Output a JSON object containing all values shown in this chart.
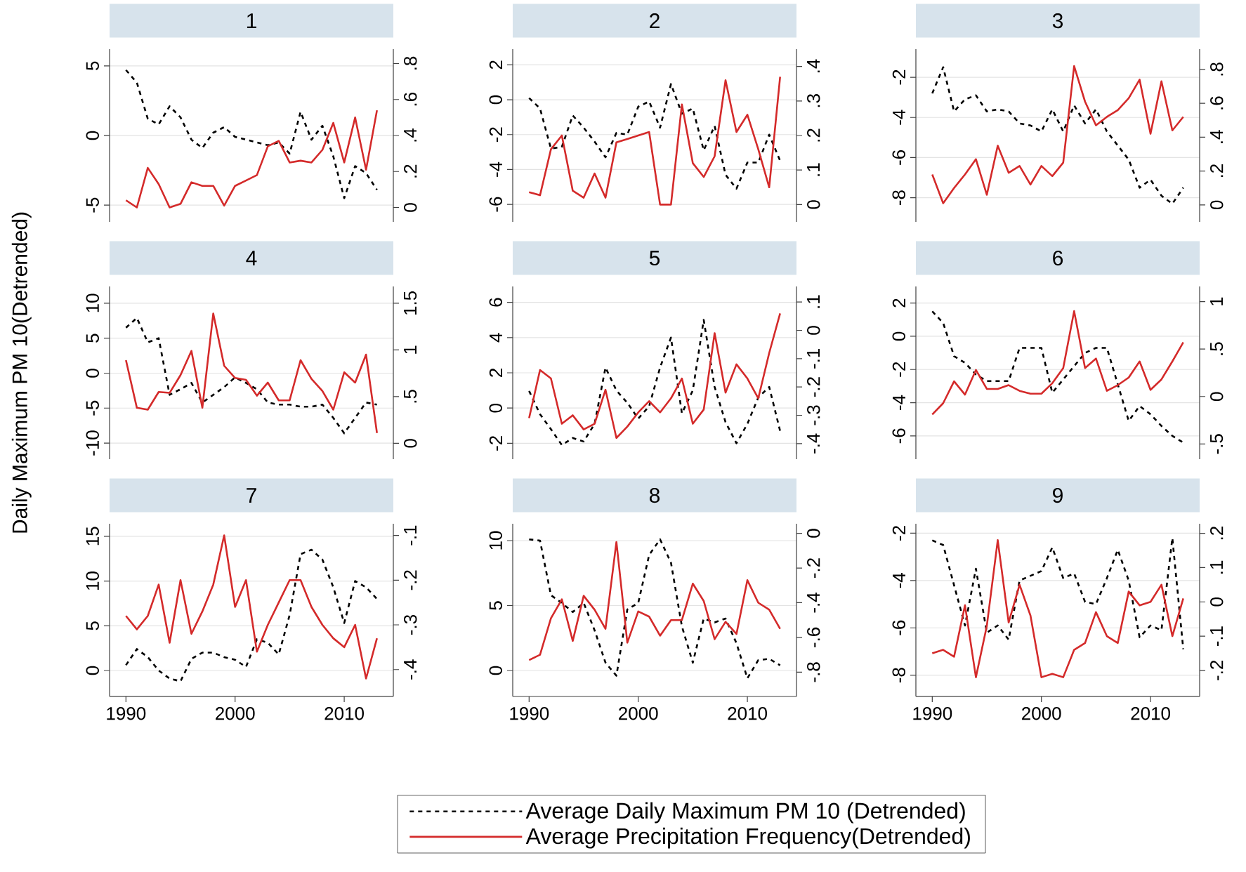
{
  "chart_data": [
    {
      "type": "line",
      "title": "1",
      "x": [
        1990,
        1991,
        1992,
        1993,
        1994,
        1995,
        1996,
        1997,
        1998,
        1999,
        2000,
        2001,
        2002,
        2003,
        2004,
        2005,
        2006,
        2007,
        2008,
        2009,
        2010,
        2011,
        2012,
        2013
      ],
      "xlim": [
        1988.5,
        2014.5
      ],
      "xticks": [
        1990,
        2000,
        2010
      ],
      "ylim": [
        -6.2,
        6.2
      ],
      "yticks": [
        -5,
        0,
        5
      ],
      "y2lim": [
        -0.08,
        0.88
      ],
      "y2ticks": [
        0,
        {
          "value": 0.2,
          "label": ".2"
        },
        {
          "value": 0.4,
          "label": ".4"
        },
        {
          "value": 0.6,
          "label": ".6"
        },
        {
          "value": 0.8,
          "label": ".8"
        }
      ],
      "grid": "y",
      "tick_labels": "y",
      "series": [
        {
          "color": "#000000",
          "line_style": "dashed",
          "values": [
            4.7,
            3.8,
            1.2,
            0.8,
            2.1,
            1.3,
            -0.3,
            -0.9,
            0.2,
            0.6,
            -0.1,
            -0.3,
            -0.5,
            -0.7,
            -0.5,
            -1.3,
            1.7,
            -0.3,
            0.7,
            -1.5,
            -4.5,
            -2.2,
            -2.7,
            -3.9
          ]
        },
        {
          "color": "#d42a2a",
          "line_style": "solid",
          "axis": "y2",
          "values": [
            0.04,
            0,
            0.22,
            0.13,
            0,
            0.02,
            0.14,
            0.12,
            0.12,
            0.01,
            0.12,
            0.15,
            0.18,
            0.34,
            0.37,
            0.25,
            0.26,
            0.25,
            0.32,
            0.47,
            0.25,
            0.5,
            0.21,
            0.54
          ]
        }
      ]
    },
    {
      "type": "line",
      "title": "2",
      "x": [
        1990,
        1991,
        1992,
        1993,
        1994,
        1995,
        1996,
        1997,
        1998,
        1999,
        2000,
        2001,
        2002,
        2003,
        2004,
        2005,
        2006,
        2007,
        2008,
        2009,
        2010,
        2011,
        2012,
        2013
      ],
      "xlim": [
        1988.5,
        2014.5
      ],
      "xticks": [
        1990,
        2000,
        2010
      ],
      "ylim": [
        -7,
        2.9
      ],
      "yticks": [
        -6,
        -4,
        -2,
        0,
        2
      ],
      "y2lim": [
        -0.05,
        0.45
      ],
      "y2ticks": [
        0,
        {
          "value": 0.1,
          "label": ".1"
        },
        {
          "value": 0.2,
          "label": ".2"
        },
        {
          "value": 0.3,
          "label": ".3"
        },
        {
          "value": 0.4,
          "label": ".4"
        }
      ],
      "grid": "y",
      "tick_labels": "y",
      "series": [
        {
          "color": "#000000",
          "line_style": "dashed",
          "values": [
            0.1,
            -0.5,
            -2.8,
            -2.7,
            -0.9,
            -1.6,
            -2.4,
            -3.3,
            -1.9,
            -2.0,
            -0.4,
            -0.1,
            -1.6,
            0.9,
            -0.8,
            -0.5,
            -2.9,
            -1.5,
            -4.3,
            -5.1,
            -3.6,
            -3.6,
            -2.0,
            -3.5
          ]
        },
        {
          "color": "#d42a2a",
          "line_style": "solid",
          "axis": "y2",
          "values": [
            0.036,
            0.027,
            0.16,
            0.2,
            0.04,
            0.02,
            0.09,
            0.02,
            0.18,
            0.19,
            0.2,
            0.21,
            0,
            0,
            0.29,
            0.12,
            0.08,
            0.14,
            0.36,
            0.21,
            0.26,
            0.16,
            0.05,
            0.37
          ]
        }
      ]
    },
    {
      "type": "line",
      "title": "3",
      "x": [
        1990,
        1991,
        1992,
        1993,
        1994,
        1995,
        1996,
        1997,
        1998,
        1999,
        2000,
        2001,
        2002,
        2003,
        2004,
        2005,
        2006,
        2007,
        2008,
        2009,
        2010,
        2011,
        2012,
        2013
      ],
      "xlim": [
        1988.5,
        2014.5
      ],
      "xticks": [
        1990,
        2000,
        2010
      ],
      "ylim": [
        -9.2,
        -0.6
      ],
      "yticks": [
        -8,
        -6,
        -4,
        -2
      ],
      "y2lim": [
        -0.1,
        0.92
      ],
      "y2ticks": [
        0,
        {
          "value": 0.2,
          "label": ".2"
        },
        {
          "value": 0.4,
          "label": ".4"
        },
        {
          "value": 0.6,
          "label": ".6"
        },
        {
          "value": 0.8,
          "label": ".8"
        }
      ],
      "grid": "y",
      "tick_labels": "y",
      "series": [
        {
          "color": "#000000",
          "line_style": "dashed",
          "values": [
            -2.8,
            -1.5,
            -3.7,
            -3.1,
            -2.9,
            -3.7,
            -3.6,
            -3.7,
            -4.3,
            -4.4,
            -4.7,
            -3.6,
            -4.7,
            -3.4,
            -4.3,
            -3.6,
            -4.7,
            -5.4,
            -6.1,
            -7.5,
            -7.1,
            -7.9,
            -8.3,
            -7.5
          ]
        },
        {
          "color": "#d42a2a",
          "line_style": "solid",
          "axis": "y2",
          "values": [
            0.18,
            0.01,
            0.1,
            0.18,
            0.27,
            0.06,
            0.35,
            0.19,
            0.23,
            0.12,
            0.23,
            0.17,
            0.25,
            0.82,
            0.61,
            0.47,
            0.52,
            0.56,
            0.63,
            0.74,
            0.42,
            0.73,
            0.44,
            0.52
          ]
        }
      ]
    },
    {
      "type": "line",
      "title": "4",
      "ylabel": "Daily Maximum PM 10(Detrended)",
      "x": [
        1990,
        1991,
        1992,
        1993,
        1994,
        1995,
        1996,
        1997,
        1998,
        1999,
        2000,
        2001,
        2002,
        2003,
        2004,
        2005,
        2006,
        2007,
        2008,
        2009,
        2010,
        2011,
        2012,
        2013
      ],
      "xlim": [
        1988.5,
        2014.5
      ],
      "xticks": [
        1990,
        2000,
        2010
      ],
      "ylim": [
        -12.3,
        12.4
      ],
      "yticks": [
        -10,
        -5,
        0,
        5,
        10
      ],
      "y2lim": [
        -0.17,
        1.68
      ],
      "y2ticks": [
        0,
        {
          "value": 0.5,
          "label": ".5"
        },
        1,
        1.5
      ],
      "grid": "y",
      "tick_labels": "y",
      "series": [
        {
          "color": "#000000",
          "line_style": "dashed",
          "values": [
            6.5,
            7.9,
            4.4,
            5.0,
            -3.1,
            -2.3,
            -1.4,
            -4.2,
            -3.1,
            -2.0,
            -0.6,
            -1.4,
            -2.3,
            -4.2,
            -4.5,
            -4.5,
            -4.8,
            -4.8,
            -4.5,
            -6.4,
            -8.6,
            -6.4,
            -4.2,
            -4.5
          ]
        },
        {
          "color": "#d42a2a",
          "line_style": "solid",
          "axis": "y2",
          "values": [
            0.89,
            0.38,
            0.36,
            0.55,
            0.54,
            0.73,
            0.99,
            0.38,
            1.39,
            0.83,
            0.7,
            0.68,
            0.51,
            0.65,
            0.46,
            0.46,
            0.89,
            0.69,
            0.56,
            0.36,
            0.76,
            0.65,
            0.95,
            0.11
          ]
        }
      ]
    },
    {
      "type": "line",
      "title": "5",
      "x": [
        1990,
        1991,
        1992,
        1993,
        1994,
        1995,
        1996,
        1997,
        1998,
        1999,
        2000,
        2001,
        2002,
        2003,
        2004,
        2005,
        2006,
        2007,
        2008,
        2009,
        2010,
        2011,
        2012,
        2013
      ],
      "xlim": [
        1988.5,
        2014.5
      ],
      "xticks": [
        1990,
        2000,
        2010
      ],
      "ylim": [
        -2.9,
        6.9
      ],
      "yticks": [
        -2,
        0,
        2,
        4,
        6
      ],
      "y2lim": [
        -0.455,
        0.155
      ],
      "y2ticks": [
        {
          "value": -0.4,
          "label": "-.4"
        },
        {
          "value": -0.3,
          "label": "-.3"
        },
        {
          "value": -0.2,
          "label": "-.2"
        },
        {
          "value": -0.1,
          "label": "-.1"
        },
        0,
        {
          "value": 0.1,
          "label": ".1"
        }
      ],
      "grid": "y",
      "tick_labels": "y",
      "series": [
        {
          "color": "#000000",
          "line_style": "dashed",
          "values": [
            0.97,
            -0.35,
            -1.2,
            -2.1,
            -1.7,
            -1.9,
            -0.9,
            2.3,
            1.0,
            0.3,
            -0.6,
            0.1,
            2.3,
            4.0,
            -0.3,
            1.0,
            5.0,
            1.2,
            -0.8,
            -2.0,
            -0.9,
            0.6,
            1.2,
            -1.3
          ]
        },
        {
          "color": "#d42a2a",
          "line_style": "solid",
          "axis": "y2",
          "values": [
            -0.31,
            -0.14,
            -0.17,
            -0.33,
            -0.3,
            -0.35,
            -0.33,
            -0.21,
            -0.38,
            -0.34,
            -0.29,
            -0.25,
            -0.29,
            -0.24,
            -0.17,
            -0.33,
            -0.28,
            -0.01,
            -0.22,
            -0.12,
            -0.17,
            -0.24,
            -0.08,
            0.06
          ]
        }
      ]
    },
    {
      "type": "line",
      "title": "6",
      "x": [
        1990,
        1991,
        1992,
        1993,
        1994,
        1995,
        1996,
        1997,
        1998,
        1999,
        2000,
        2001,
        2002,
        2003,
        2004,
        2005,
        2006,
        2007,
        2008,
        2009,
        2010,
        2011,
        2012,
        2013
      ],
      "xlim": [
        1988.5,
        2014.5
      ],
      "xticks": [
        1990,
        2000,
        2010
      ],
      "ylim": [
        -7.4,
        3.0
      ],
      "yticks": [
        -6,
        -4,
        -2,
        0,
        2
      ],
      "y2lim": [
        -0.66,
        1.16
      ],
      "y2ticks": [
        {
          "value": -0.5,
          "label": "-.5"
        },
        0,
        {
          "value": 0.5,
          "label": ".5"
        },
        1
      ],
      "grid": "y",
      "tick_labels": "y",
      "series": [
        {
          "color": "#000000",
          "line_style": "dashed",
          "values": [
            1.5,
            0.8,
            -1.2,
            -1.6,
            -2.3,
            -2.7,
            -2.7,
            -2.7,
            -0.7,
            -0.7,
            -0.7,
            -3.4,
            -2.6,
            -1.8,
            -1.0,
            -0.7,
            -0.7,
            -2.9,
            -5.1,
            -4.2,
            -4.7,
            -5.4,
            -6.0,
            -6.4
          ]
        },
        {
          "color": "#d42a2a",
          "line_style": "solid",
          "axis": "y2",
          "values": [
            -0.19,
            -0.07,
            0.16,
            0.02,
            0.28,
            0.08,
            0.08,
            0.12,
            0.06,
            0.03,
            0.03,
            0.14,
            0.3,
            0.9,
            0.3,
            0.4,
            0.06,
            0.12,
            0.2,
            0.37,
            0.07,
            0.18,
            0.37,
            0.57
          ]
        }
      ]
    },
    {
      "type": "line",
      "title": "7",
      "x": [
        1990,
        1991,
        1992,
        1993,
        1994,
        1995,
        1996,
        1997,
        1998,
        1999,
        2000,
        2001,
        2002,
        2003,
        2004,
        2005,
        2006,
        2007,
        2008,
        2009,
        2010,
        2011,
        2012,
        2013
      ],
      "xlim": [
        1988.5,
        2014.5
      ],
      "xticks": [
        1990,
        2000,
        2010
      ],
      "ylim": [
        -2.9,
        16.4
      ],
      "yticks": [
        0,
        5,
        10,
        15
      ],
      "y2lim": [
        -0.46,
        -0.074
      ],
      "y2ticks": [
        {
          "value": -0.4,
          "label": "-.4"
        },
        {
          "value": -0.3,
          "label": "-.3"
        },
        {
          "value": -0.2,
          "label": "-.2"
        },
        {
          "value": -0.1,
          "label": "-.1"
        }
      ],
      "grid": "y",
      "series": [
        {
          "color": "#000000",
          "line_style": "dashed",
          "values": [
            0.6,
            2.4,
            1.5,
            0,
            -0.9,
            -1.2,
            1.3,
            2.0,
            2.0,
            1.5,
            1.2,
            0.4,
            3.5,
            3.1,
            1.8,
            6.2,
            13.0,
            13.5,
            12.4,
            9.3,
            5.3,
            10.0,
            9.3,
            8.0
          ]
        },
        {
          "color": "#d42a2a",
          "line_style": "solid",
          "axis": "y2",
          "values": [
            -0.28,
            -0.31,
            -0.28,
            -0.21,
            -0.34,
            -0.2,
            -0.32,
            -0.27,
            -0.21,
            -0.1,
            -0.26,
            -0.2,
            -0.36,
            -0.3,
            -0.25,
            -0.2,
            -0.2,
            -0.26,
            -0.3,
            -0.33,
            -0.35,
            -0.3,
            -0.42,
            -0.33
          ]
        }
      ]
    },
    {
      "type": "line",
      "title": "8",
      "legend": "bottom",
      "x": [
        1990,
        1991,
        1992,
        1993,
        1994,
        1995,
        1996,
        1997,
        1998,
        1999,
        2000,
        2001,
        2002,
        2003,
        2004,
        2005,
        2006,
        2007,
        2008,
        2009,
        2010,
        2011,
        2012,
        2013
      ],
      "xlim": [
        1988.5,
        2014.5
      ],
      "xticks": [
        1990,
        2000,
        2010
      ],
      "ylim": [
        -2.0,
        11.3
      ],
      "yticks": [
        0,
        5,
        10
      ],
      "y2lim": [
        -0.94,
        0.055
      ],
      "y2ticks": [
        {
          "value": -0.8,
          "label": "-.8"
        },
        {
          "value": -0.6,
          "label": "-.6"
        },
        {
          "value": -0.4,
          "label": "-.4"
        },
        {
          "value": -0.2,
          "label": "-.2"
        },
        0
      ],
      "grid": "y",
      "series": [
        {
          "name": "Average Daily Maximum PM 10 (Detrended)",
          "color": "#000000",
          "line_style": "dashed",
          "values": [
            10.1,
            10.0,
            5.8,
            5.2,
            4.5,
            5.2,
            3.1,
            0.6,
            -0.4,
            4.7,
            5.2,
            8.9,
            10.1,
            8.3,
            3.4,
            0.6,
            4.0,
            3.7,
            4.0,
            2.1,
            -0.6,
            0.8,
            0.9,
            0.4
          ]
        },
        {
          "name": "Average Precipitation Frequency(Detrended)",
          "color": "#d42a2a",
          "line_style": "solid",
          "axis": "y2",
          "values": [
            -0.73,
            -0.7,
            -0.49,
            -0.38,
            -0.62,
            -0.36,
            -0.44,
            -0.55,
            -0.05,
            -0.63,
            -0.45,
            -0.48,
            -0.59,
            -0.5,
            -0.5,
            -0.29,
            -0.39,
            -0.61,
            -0.51,
            -0.58,
            -0.27,
            -0.4,
            -0.44,
            -0.55
          ]
        }
      ]
    },
    {
      "type": "line",
      "title": "9",
      "x": [
        1990,
        1991,
        1992,
        1993,
        1994,
        1995,
        1996,
        1997,
        1998,
        1999,
        2000,
        2001,
        2002,
        2003,
        2004,
        2005,
        2006,
        2007,
        2008,
        2009,
        2010,
        2011,
        2012,
        2013
      ],
      "xlim": [
        1988.5,
        2014.5
      ],
      "xticks": [
        1990,
        2000,
        2010
      ],
      "ylim": [
        -8.9,
        -1.6
      ],
      "yticks": [
        -8,
        -6,
        -4,
        -2
      ],
      "y2lim": [
        -0.276,
        0.228
      ],
      "y2ticks": [
        {
          "value": -0.2,
          "label": "-.2"
        },
        {
          "value": -0.1,
          "label": "-.1"
        },
        0,
        {
          "value": 0.1,
          "label": ".1"
        },
        {
          "value": 0.2,
          "label": ".2"
        }
      ],
      "grid": "y",
      "series": [
        {
          "color": "#000000",
          "line_style": "dashed",
          "values": [
            -2.3,
            -2.5,
            -4.2,
            -5.9,
            -3.5,
            -6.2,
            -5.9,
            -6.5,
            -4.0,
            -3.8,
            -3.6,
            -2.6,
            -3.9,
            -3.7,
            -4.9,
            -5.0,
            -3.9,
            -2.7,
            -4.0,
            -6.4,
            -5.9,
            -6.1,
            -2.2,
            -6.9
          ]
        },
        {
          "color": "#d42a2a",
          "line_style": "solid",
          "axis": "y2",
          "values": [
            -0.15,
            -0.14,
            -0.16,
            -0.01,
            -0.22,
            -0.07,
            0.18,
            -0.06,
            0.05,
            -0.04,
            -0.22,
            -0.21,
            -0.22,
            -0.14,
            -0.12,
            -0.03,
            -0.1,
            -0.12,
            0.03,
            -0.01,
            0.0,
            0.05,
            -0.1,
            0.01
          ]
        }
      ]
    }
  ]
}
